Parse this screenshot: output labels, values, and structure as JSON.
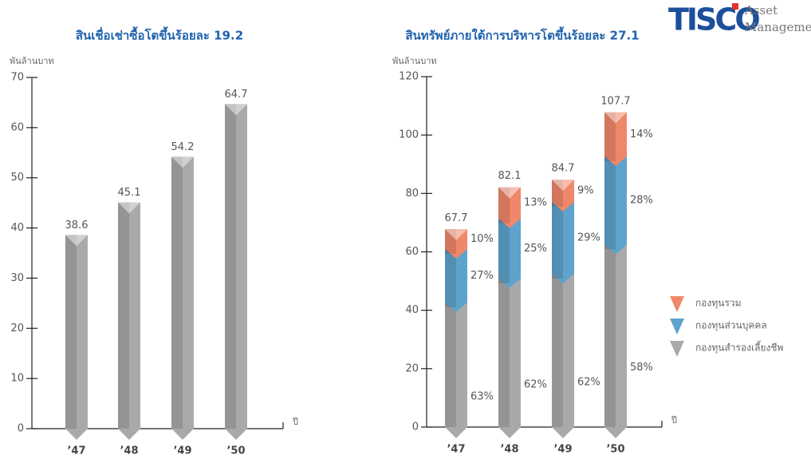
{
  "logo": {
    "brand": "TISCO",
    "line1": "Asset",
    "line2": "Management"
  },
  "chart_data": [
    {
      "type": "bar",
      "title": "สินเชื่อเช่าซื้อโตขึ้นร้อยละ 19.2",
      "y_label": "พันล้านบาท",
      "x_label": "ปี",
      "categories": [
        "’47",
        "’48",
        "’49",
        "’50"
      ],
      "values": [
        38.6,
        45.1,
        54.2,
        64.7
      ],
      "color": "#a9a9ab",
      "ylim": [
        0,
        70
      ],
      "yticks": [
        0,
        10,
        20,
        30,
        40,
        50,
        60,
        70
      ]
    },
    {
      "type": "stacked_bar",
      "title": "สินทรัพย์ภายใต้การบริหารโตขึ้นร้อยละ 27.1",
      "y_label": "พันล้านบาท",
      "x_label": "ปี",
      "categories": [
        "’47",
        "’48",
        "’49",
        "’50"
      ],
      "totals": [
        67.7,
        82.1,
        84.7,
        107.7
      ],
      "series": [
        {
          "name": "กองทุนสำรองเลี้ยงชีพ",
          "color": "#a9a9ab",
          "values": [
            42.7,
            50.9,
            52.5,
            62.5
          ],
          "value_labels": [
            "63%",
            "62%",
            "62%",
            "58%"
          ]
        },
        {
          "name": "กองทุนส่วนบุคคล",
          "color": "#5ea3cc",
          "values": [
            18.3,
            20.5,
            24.6,
            30.2
          ],
          "value_labels": [
            "27%",
            "25%",
            "29%",
            "28%"
          ]
        },
        {
          "name": "กองทุนรวม",
          "color": "#f0876a",
          "values": [
            6.8,
            10.7,
            7.6,
            15.1
          ],
          "value_labels": [
            "10%",
            "13%",
            "9%",
            "14%"
          ]
        }
      ],
      "ylim": [
        0,
        120
      ],
      "yticks": [
        0,
        20,
        40,
        60,
        80,
        100,
        120
      ]
    }
  ]
}
